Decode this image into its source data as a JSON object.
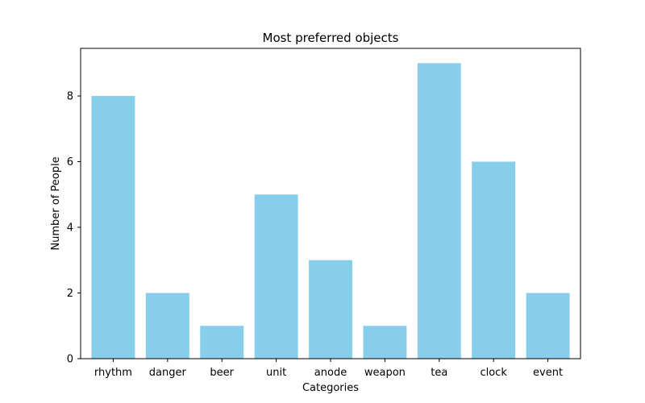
{
  "chart_data": {
    "type": "bar",
    "title": "Most preferred objects",
    "xlabel": "Categories",
    "ylabel": "Number of People",
    "categories": [
      "rhythm",
      "danger",
      "beer",
      "unit",
      "anode",
      "weapon",
      "tea",
      "clock",
      "event"
    ],
    "values": [
      8,
      2,
      1,
      5,
      3,
      1,
      9,
      6,
      2
    ],
    "ylim": [
      0,
      9.45
    ],
    "yticks": [
      0,
      2,
      4,
      6,
      8
    ],
    "bar_color": "#87CEEB",
    "grid": false,
    "legend": "none"
  }
}
